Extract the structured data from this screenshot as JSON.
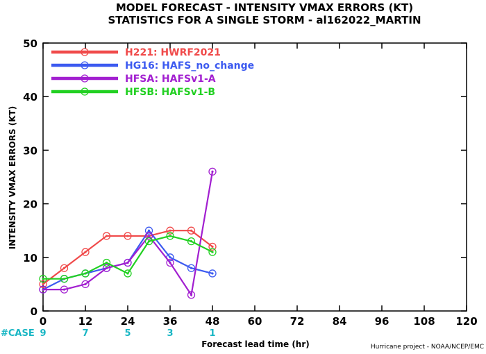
{
  "chart_data": {
    "type": "line",
    "title": "MODEL FORECAST - INTENSITY VMAX ERRORS (KT)",
    "subtitle": "STATISTICS FOR A SINGLE STORM - al162022_MARTIN",
    "xlabel": "Forecast lead time (hr)",
    "ylabel": "INTENSITY VMAX ERRORS (KT)",
    "xlim": [
      0,
      120
    ],
    "ylim": [
      0,
      50
    ],
    "xticks": [
      0,
      12,
      24,
      36,
      48,
      60,
      72,
      84,
      96,
      108,
      120
    ],
    "yticks": [
      0,
      10,
      20,
      30,
      40,
      50
    ],
    "grid": false,
    "legend_position": "top-left",
    "case_label": "#CASE",
    "cases": [
      {
        "x": 0,
        "n": "9"
      },
      {
        "x": 12,
        "n": "7"
      },
      {
        "x": 24,
        "n": "5"
      },
      {
        "x": 36,
        "n": "3"
      },
      {
        "x": 48,
        "n": "1"
      }
    ],
    "credit": "Hurricane project - NOAA/NCEP/EMC",
    "series": [
      {
        "name": "H221: HWRF2021",
        "color": "#f04a4a",
        "x": [
          0,
          6,
          12,
          18,
          24,
          30,
          36,
          42,
          48
        ],
        "y": [
          5,
          8,
          11,
          14,
          14,
          14,
          15,
          15,
          12
        ]
      },
      {
        "name": "HG16: HAFS_no_change",
        "color": "#3c5af0",
        "x": [
          0,
          6,
          12,
          18,
          24,
          30,
          36,
          42,
          48
        ],
        "y": [
          4,
          6,
          7,
          8,
          9,
          15,
          10,
          8,
          7
        ]
      },
      {
        "name": "HFSA: HAFSv1-A",
        "color": "#a21fd0",
        "x": [
          0,
          6,
          12,
          18,
          24,
          30,
          36,
          42,
          48
        ],
        "y": [
          4,
          4,
          5,
          8,
          9,
          14,
          9,
          3,
          26
        ]
      },
      {
        "name": "HFSB: HAFSv1-B",
        "color": "#22d022",
        "x": [
          0,
          6,
          12,
          18,
          24,
          30,
          36,
          42,
          48
        ],
        "y": [
          6,
          6,
          7,
          9,
          7,
          13,
          14,
          13,
          11
        ]
      }
    ]
  }
}
